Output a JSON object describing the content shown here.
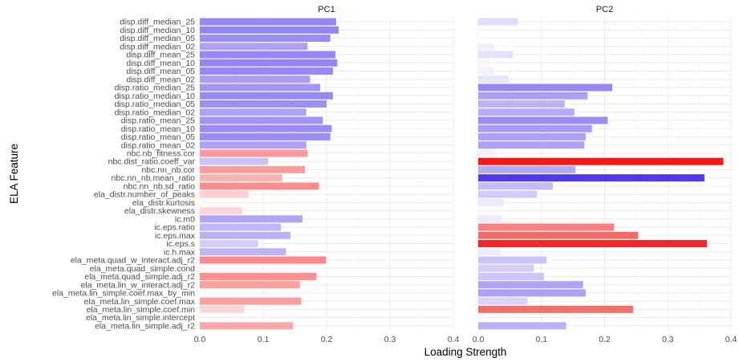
{
  "chart_data": {
    "type": "bar",
    "orientation": "horizontal",
    "facets": [
      "PC1",
      "PC2"
    ],
    "xlabel": "Loading Strength",
    "ylabel": "ELA Feature",
    "xlim": [
      0,
      0.4
    ],
    "xticks": [
      0.0,
      0.1,
      0.2,
      0.3,
      0.4
    ],
    "xtick_labels": [
      "0.0",
      "0.1",
      "0.2",
      "0.3",
      "0.4"
    ],
    "grid": true,
    "legend": "none",
    "color_scale": {
      "low": "#3b1ff2",
      "mid": "#ffffff",
      "high": "#ff0d0d",
      "range": [
        -0.4,
        0.4
      ]
    },
    "categories": [
      "disp.diff_median_25",
      "disp.diff_median_10",
      "disp.diff_median_05",
      "disp.diff_median_02",
      "disp.diff_mean_25",
      "disp.diff_mean_10",
      "disp.diff_mean_05",
      "disp.diff_mean_02",
      "disp.ratio_median_25",
      "disp.ratio_median_10",
      "disp.ratio_median_05",
      "disp.ratio_median_02",
      "disp.ratio_mean_25",
      "disp.ratio_mean_10",
      "disp.ratio_mean_05",
      "disp.ratio_mean_02",
      "nbc.nb_fitness.cor",
      "nbc.dist_ratio.coeff_var",
      "nbc.nn_nb.cor",
      "nbc.nn_nb.mean_ratio",
      "nbc.nn_nb.sd_ratio",
      "ela_distr.number_of_peaks",
      "ela_distr.kurtosis",
      "ela_distr.skewness",
      "ic.m0",
      "ic.eps.ratio",
      "ic.eps.max",
      "ic.eps.s",
      "ic.h.max",
      "ela_meta.quad_w_interact.adj_r2",
      "ela_meta.quad_simple.cond",
      "ela_meta.quad_simple.adj_r2",
      "ela_meta.lin_w_interact.adj_r2",
      "ela_meta.lin_simple.coef.max_by_min",
      "ela_meta.lin_simple.coef.max",
      "ela_meta.lin_simple.coef.min",
      "ela_meta.lin_simple.intercept",
      "ela_meta.lin_simple.adj_r2"
    ],
    "series": [
      {
        "name": "PC1",
        "values": [
          0.215,
          0.219,
          0.206,
          0.17,
          0.214,
          0.217,
          0.21,
          0.174,
          0.19,
          0.21,
          0.2,
          0.168,
          0.194,
          0.208,
          0.206,
          0.168,
          0.17,
          0.108,
          0.166,
          0.13,
          0.188,
          0.077,
          0.005,
          0.067,
          0.162,
          0.128,
          0.143,
          0.092,
          0.136,
          0.199,
          0.002,
          0.184,
          0.158,
          0.001,
          0.16,
          0.07,
          0.001,
          0.147
        ],
        "signed_loading": [
          -0.215,
          -0.219,
          -0.206,
          -0.17,
          -0.214,
          -0.217,
          -0.21,
          -0.174,
          -0.19,
          -0.21,
          -0.2,
          -0.168,
          -0.194,
          -0.208,
          -0.206,
          -0.168,
          0.17,
          -0.108,
          0.166,
          0.13,
          0.188,
          0.077,
          0.005,
          0.067,
          -0.162,
          -0.128,
          -0.143,
          -0.092,
          -0.136,
          0.199,
          0.002,
          0.184,
          0.158,
          0.001,
          0.16,
          0.07,
          0.001,
          0.147
        ]
      },
      {
        "name": "PC2",
        "values": [
          0.063,
          0.005,
          0.002,
          0.026,
          0.055,
          0.018,
          0.024,
          0.048,
          0.212,
          0.173,
          0.137,
          0.152,
          0.205,
          0.18,
          0.17,
          0.168,
          0.027,
          0.388,
          0.154,
          0.358,
          0.118,
          0.093,
          0.04,
          0.003,
          0.037,
          0.215,
          0.253,
          0.362,
          0.035,
          0.108,
          0.088,
          0.104,
          0.166,
          0.17,
          0.078,
          0.245,
          0.001,
          0.139
        ],
        "signed_loading": [
          -0.063,
          -0.005,
          -0.002,
          -0.026,
          -0.055,
          -0.018,
          -0.024,
          -0.048,
          -0.212,
          -0.173,
          -0.137,
          -0.152,
          -0.205,
          -0.18,
          -0.17,
          -0.168,
          -0.027,
          0.388,
          -0.154,
          -0.358,
          -0.118,
          -0.093,
          -0.04,
          -0.003,
          -0.037,
          0.215,
          0.253,
          0.362,
          -0.035,
          -0.108,
          -0.088,
          -0.104,
          -0.166,
          -0.17,
          -0.078,
          0.245,
          -0.001,
          -0.139
        ]
      }
    ]
  }
}
